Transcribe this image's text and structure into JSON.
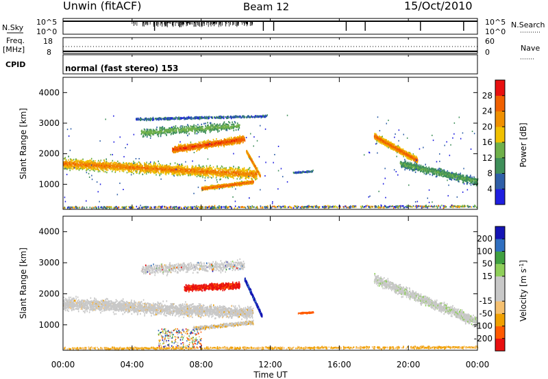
{
  "header": {
    "station": "Unwin (fitACF)",
    "beam": "Beam 12",
    "date": "15/Oct/2010"
  },
  "side_labels": {
    "nsky": "N.Sky",
    "nsearch": "N.Search",
    "freq_top": "Freq.",
    "freq_unit": "[MHz]",
    "nave": "Nave",
    "cpid": "CPID"
  },
  "strip_ticks": {
    "noise_left": [
      "10^5",
      "10^0"
    ],
    "noise_right": [
      "10^5",
      "10^0"
    ],
    "freq_left": [
      "18",
      "8"
    ],
    "nave_right": [
      "60",
      "0"
    ]
  },
  "cpid_text": "normal (fast stereo) 153",
  "colors": {
    "power": [
      "#1f1fe0",
      "#2f5fa8",
      "#3f8f5a",
      "#6fb04a",
      "#f0c000",
      "#f09000",
      "#f06000",
      "#e81010"
    ],
    "velocity": [
      "#e81010",
      "#ff5a00",
      "#f0a000",
      "#f5c070",
      "#c8c8c8",
      "#c8c8c8",
      "#8fcf5a",
      "#40a040",
      "#2f6fc0",
      "#1414b4"
    ],
    "gray": "#c8c8c8"
  },
  "chart_data": [
    {
      "type": "heatmap",
      "name": "power",
      "title": "",
      "xlabel": "",
      "ylabel": "Slant Range [km]",
      "xlim": [
        "00:00",
        "24:00"
      ],
      "ylim": [
        180,
        4500
      ],
      "x_ticks": [
        "00:00",
        "04:00",
        "08:00",
        "12:00",
        "16:00",
        "20:00",
        "00:00"
      ],
      "y_ticks": [
        "1000",
        "2000",
        "3000",
        "4000"
      ],
      "colorbar": {
        "label": "Power [dB]",
        "ticks": [
          "4",
          "8",
          "12",
          "16",
          "20",
          "24",
          "28"
        ],
        "range": [
          0,
          30
        ]
      },
      "features": [
        {
          "t_start": 0.0,
          "t_end": 11.2,
          "r_start": 1700,
          "r_end": 1350,
          "width_km": 350,
          "value": "8-20 dB"
        },
        {
          "t_start": 6.3,
          "t_end": 10.5,
          "r_start": 2200,
          "r_end": 2500,
          "width_km": 250,
          "value": "16-24 dB"
        },
        {
          "t_start": 8.0,
          "t_end": 11.0,
          "r_start": 880,
          "r_end": 1100,
          "width_km": 150,
          "value": "12-24 dB"
        },
        {
          "t_start": 13.3,
          "t_end": 14.5,
          "r_start": 1400,
          "r_end": 1450,
          "width_km": 80,
          "value": "4-12 dB"
        },
        {
          "t_start": 18.0,
          "t_end": 20.5,
          "r_start": 2600,
          "r_end": 1800,
          "width_km": 300,
          "value": "12-24 dB"
        },
        {
          "t_start": 19.5,
          "t_end": 24.0,
          "r_start": 1700,
          "r_end": 1100,
          "width_km": 300,
          "value": "4-12 dB"
        }
      ]
    },
    {
      "type": "heatmap",
      "name": "velocity",
      "title": "",
      "xlabel": "Time UT",
      "ylabel": "Slant Range [km]",
      "xlim": [
        "00:00",
        "24:00"
      ],
      "ylim": [
        180,
        4500
      ],
      "x_ticks": [
        "00:00",
        "04:00",
        "08:00",
        "12:00",
        "16:00",
        "20:00",
        "00:00"
      ],
      "y_ticks": [
        "1000",
        "2000",
        "3000",
        "4000"
      ],
      "colorbar": {
        "label": "Velocity [m s-1]",
        "ticks": [
          "200",
          "100",
          "50",
          "15",
          "-15",
          "-50",
          "-100",
          "-200"
        ],
        "range": [
          -250,
          250
        ]
      },
      "features": [
        {
          "t_start": 0.0,
          "t_end": 11.0,
          "r_start": 1700,
          "r_end": 1400,
          "value": "-15 to 15 (ground scatter)"
        },
        {
          "t_start": 7.0,
          "t_end": 10.2,
          "r_start": 2200,
          "r_end": 2300,
          "value": "-100 to -200"
        },
        {
          "t_start": 10.5,
          "t_end": 11.5,
          "r_start": 2500,
          "r_end": 1300,
          "value": "100 to 200"
        },
        {
          "t_start": 13.6,
          "t_end": 14.5,
          "r_start": 1400,
          "r_end": 1420,
          "value": "-50 to -100"
        },
        {
          "t_start": 18.0,
          "t_end": 24.0,
          "r_start": 2500,
          "r_end": 1100,
          "value": "-15 to 15"
        }
      ]
    }
  ]
}
